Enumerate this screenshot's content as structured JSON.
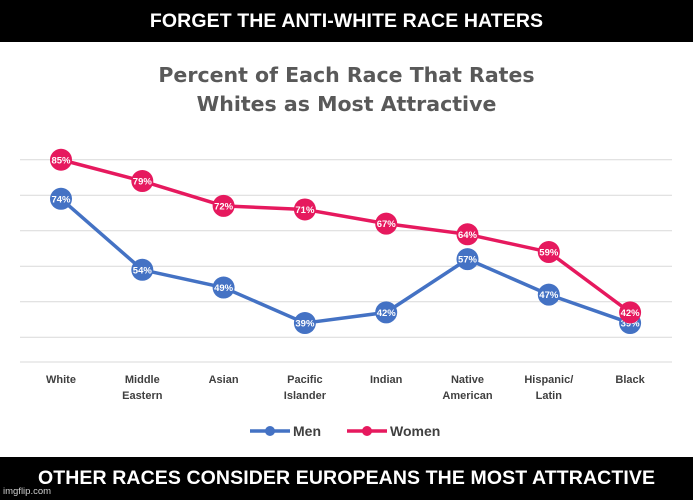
{
  "top_caption": "FORGET THE ANTI-WHITE RACE HATERS",
  "bottom_caption": "OTHER RACES CONSIDER EUROPEANS THE MOST ATTRACTIVE",
  "watermark": "imgflip.com",
  "chart_data": {
    "type": "line",
    "title_line1": "Percent of Each Race That Rates",
    "title_line2": "Whites as Most Attractive",
    "categories": [
      "White",
      "Middle Eastern",
      "Asian",
      "Pacific Islander",
      "Indian",
      "Native American",
      "Hispanic/ Latin",
      "Black"
    ],
    "category_lines": [
      [
        "White"
      ],
      [
        "Middle",
        "Eastern"
      ],
      [
        "Asian"
      ],
      [
        "Pacific",
        "Islander"
      ],
      [
        "Indian"
      ],
      [
        "Native",
        "American"
      ],
      [
        "Hispanic/",
        "Latin"
      ],
      [
        "Black"
      ]
    ],
    "series": [
      {
        "name": "Men",
        "color": "#4472C4",
        "values": [
          74,
          54,
          49,
          39,
          42,
          57,
          47,
          39
        ]
      },
      {
        "name": "Women",
        "color": "#E6195E",
        "values": [
          85,
          79,
          72,
          71,
          67,
          64,
          59,
          42
        ]
      }
    ],
    "ylim": [
      30,
      90
    ],
    "y_gridlines": [
      35,
      45,
      55,
      65,
      75,
      85
    ],
    "value_suffix": "%",
    "grid": true,
    "legend_position": "bottom"
  }
}
